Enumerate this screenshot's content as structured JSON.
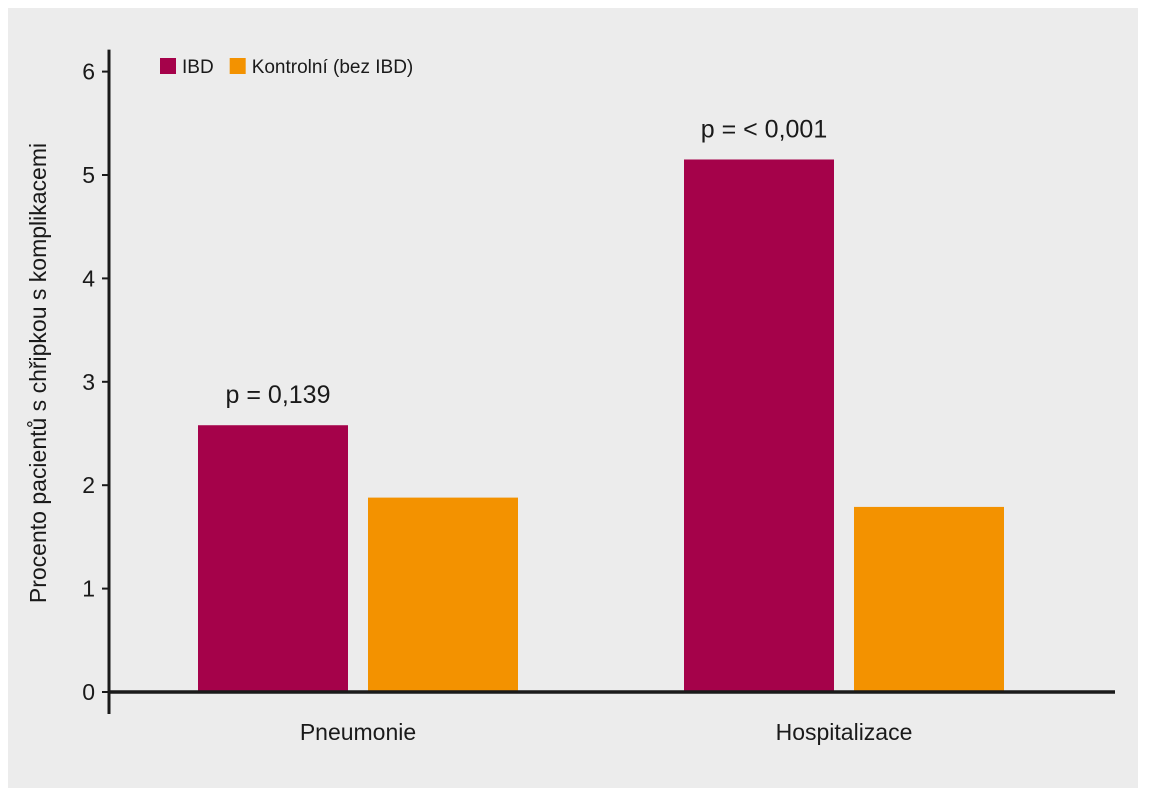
{
  "chart_data": {
    "type": "bar",
    "title": "",
    "xlabel": "",
    "ylabel": "Procento pacientů s chřipkou s komplikacemi",
    "ylim": [
      0,
      6
    ],
    "yticks": [
      0,
      1,
      2,
      3,
      4,
      5,
      6
    ],
    "grid": false,
    "legend_position": "top-left",
    "categories": [
      "Pneumonie",
      "Hospitalizace"
    ],
    "series": [
      {
        "name": "IBD",
        "color": "#a5024a",
        "values": [
          2.58,
          5.15
        ]
      },
      {
        "name": "Kontrolní (bez IBD)",
        "color": "#f39200",
        "values": [
          1.88,
          1.79
        ]
      }
    ],
    "annotations": [
      {
        "category_index": 0,
        "text": "p = 0,139"
      },
      {
        "category_index": 1,
        "text": "p = <  0,001"
      }
    ]
  }
}
